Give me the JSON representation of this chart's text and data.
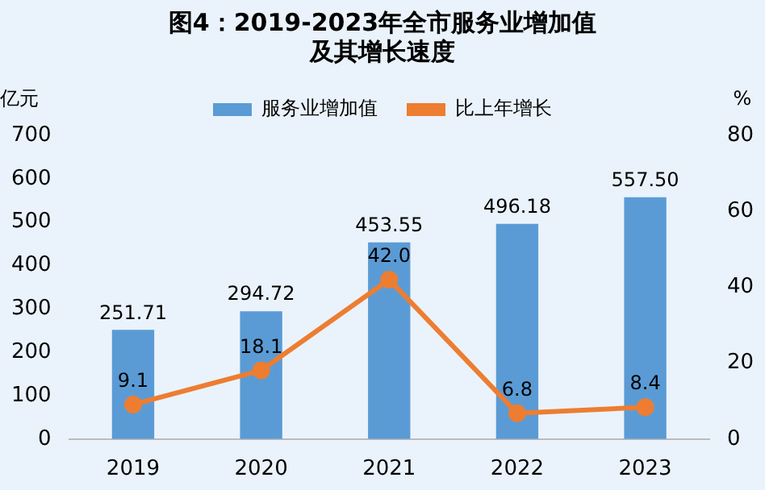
{
  "chart_data": {
    "type": "bar",
    "title": "图4：2019-2023年全市服务业增加值及其增长速度",
    "ylabel": "亿元",
    "y2label": "%",
    "categories": [
      "2019",
      "2020",
      "2021",
      "2022",
      "2023"
    ],
    "series": [
      {
        "name": "服务业增加值",
        "color": "#5b9bd5",
        "values": [
          251.71,
          294.72,
          453.55,
          496.18,
          557.5
        ],
        "value_labels": [
          "251.71",
          "294.72",
          "453.55",
          "496.18",
          "557.50"
        ]
      },
      {
        "name": "比上年增长",
        "type": "line",
        "axis": "y2",
        "color": "#ed7d31",
        "marker": "circle",
        "values": [
          9.1,
          18.1,
          42.0,
          6.8,
          8.4
        ],
        "value_labels": [
          "9.1",
          "18.1",
          "42.0",
          "6.8",
          "8.4"
        ]
      }
    ],
    "ylim": [
      0,
      700
    ],
    "yticks": [
      0,
      100,
      200,
      300,
      400,
      500,
      600,
      700
    ],
    "y2lim": [
      0,
      80
    ],
    "y2ticks": [
      0,
      20,
      40,
      60,
      80
    ],
    "grid": false,
    "legend": "top"
  }
}
